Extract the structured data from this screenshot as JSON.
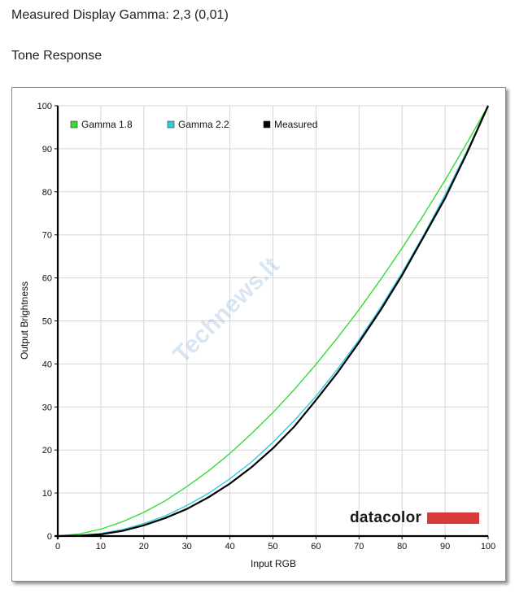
{
  "header": {
    "gamma_line": "Measured Display Gamma: 2,3 (0,01)",
    "section_title": "Tone Response"
  },
  "chart_data": {
    "type": "line",
    "xlabel": "Input RGB",
    "ylabel": "Output Brightness",
    "xlim": [
      0,
      100
    ],
    "ylim": [
      0,
      100
    ],
    "x_ticks": [
      0,
      10,
      20,
      30,
      40,
      50,
      60,
      70,
      80,
      90,
      100
    ],
    "y_ticks": [
      0,
      10,
      20,
      30,
      40,
      50,
      60,
      70,
      80,
      90,
      100
    ],
    "grid": true,
    "legend_position": "top-left",
    "x": [
      0,
      5,
      10,
      15,
      20,
      25,
      30,
      35,
      40,
      45,
      50,
      55,
      60,
      65,
      70,
      75,
      80,
      85,
      90,
      95,
      100
    ],
    "series": [
      {
        "name": "Gamma 1.8",
        "color": "#33dd33",
        "values": [
          0,
          0.5,
          1.6,
          3.3,
          5.5,
          8.2,
          11.5,
          15.1,
          19.2,
          23.8,
          28.7,
          34.1,
          39.9,
          46.1,
          52.6,
          59.6,
          66.9,
          74.6,
          82.7,
          91.2,
          100
        ]
      },
      {
        "name": "Gamma 2.2",
        "color": "#33ccdd",
        "values": [
          0,
          0.1,
          0.6,
          1.5,
          2.9,
          4.7,
          7.1,
          9.9,
          13.3,
          17.2,
          21.8,
          26.9,
          32.5,
          38.8,
          45.6,
          53.1,
          61.2,
          69.9,
          79.3,
          89.3,
          100
        ]
      },
      {
        "name": "Measured",
        "color": "#000000",
        "values": [
          0,
          0.1,
          0.4,
          1.2,
          2.5,
          4.2,
          6.3,
          9.0,
          12.2,
          16.0,
          20.4,
          25.5,
          31.6,
          38.0,
          45.0,
          52.5,
          60.6,
          69.5,
          78.5,
          88.8,
          100
        ]
      }
    ]
  },
  "logo": {
    "text": "datacolor",
    "bar_color": "#d83a3a"
  },
  "watermark": {
    "text": "Technews.lt"
  }
}
